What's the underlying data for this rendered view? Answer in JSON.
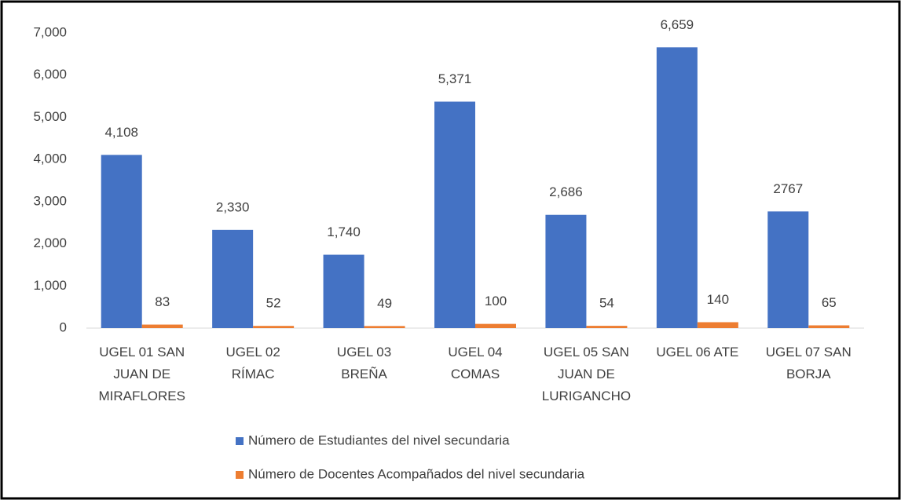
{
  "chart_data": {
    "type": "bar",
    "categories": [
      "UGEL 01 SAN JUAN DE MIRAFLORES",
      "UGEL 02 RÍMAC",
      "UGEL 03 BREÑA",
      "UGEL 04 COMAS",
      "UGEL 05 SAN JUAN DE LURIGANCHO",
      "UGEL 06 ATE",
      "UGEL 07 SAN BORJA"
    ],
    "series": [
      {
        "name": "Número de Estudiantes del nivel secundaria",
        "color": "#4472c4",
        "values": [
          4108,
          2330,
          1740,
          5371,
          2686,
          6659,
          2767
        ],
        "value_labels": [
          "4,108",
          "2,330",
          "1,740",
          "5,371",
          "2,686",
          "6,659",
          "2767"
        ]
      },
      {
        "name": "Número de Docentes Acompañados del nivel secundaria",
        "color": "#ed7d31",
        "values": [
          83,
          52,
          49,
          100,
          54,
          140,
          65
        ]
      }
    ],
    "ylim": [
      0,
      7000
    ],
    "yticks": [
      0,
      {
        "value": 1000,
        "label": "1,000"
      },
      {
        "value": 2000,
        "label": "2,000"
      },
      {
        "value": 3000,
        "label": "3,000"
      },
      {
        "value": 4000,
        "label": "4,000"
      },
      {
        "value": 5000,
        "label": "5,000"
      },
      {
        "value": 6000,
        "label": "6,000"
      },
      {
        "value": 7000,
        "label": "7,000"
      }
    ],
    "grid": false
  }
}
